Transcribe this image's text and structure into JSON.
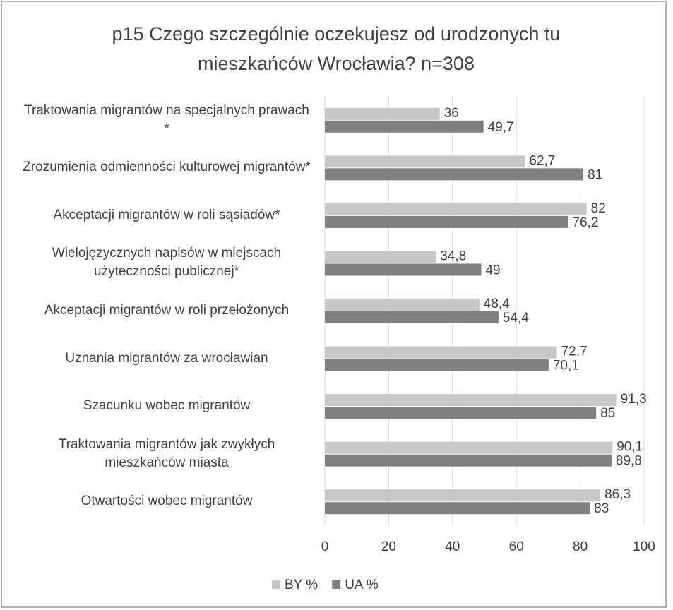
{
  "chart_data": {
    "type": "hbar",
    "title_lines": [
      "p15  Czego szczególnie oczekujesz od urodzonych tu",
      "mieszkańców Wrocławia? n=308"
    ],
    "categories": [
      "Traktowania migrantów na specjalnych prawach *",
      "Zrozumienia odmienności kulturowej migrantów*",
      "Akceptacji migrantów w roli sąsiadów*",
      "Wielojęzycznych napisów w miejscach użyteczności publicznej*",
      "Akceptacji migrantów w roli przełożonych",
      "Uznania migrantów za wrocławian",
      "Szacunku wobec migrantów",
      "Traktowania migrantów jak zwykłych mieszkańców miasta",
      "Otwartości wobec migrantów"
    ],
    "series": [
      {
        "name": "BY %",
        "color": "#c8c8c8",
        "values": [
          36,
          62.7,
          82,
          34.8,
          48.4,
          72.7,
          91.3,
          90.1,
          86.3
        ],
        "value_labels": [
          "36",
          "62,7",
          "82",
          "34,8",
          "48,4",
          "72,7",
          "91,3",
          "90,1",
          "86,3"
        ]
      },
      {
        "name": "UA %",
        "color": "#808080",
        "values": [
          49.7,
          81,
          76.2,
          49,
          54.4,
          70.1,
          85,
          89.8,
          83
        ],
        "value_labels": [
          "49,7",
          "81",
          "76,2",
          "49",
          "54,4",
          "70,1",
          "85",
          "89,8",
          "83"
        ]
      }
    ],
    "xlim": [
      0,
      100
    ],
    "xticks": [
      0,
      20,
      40,
      60,
      80,
      100
    ],
    "grid": true,
    "legend": "bottom"
  }
}
